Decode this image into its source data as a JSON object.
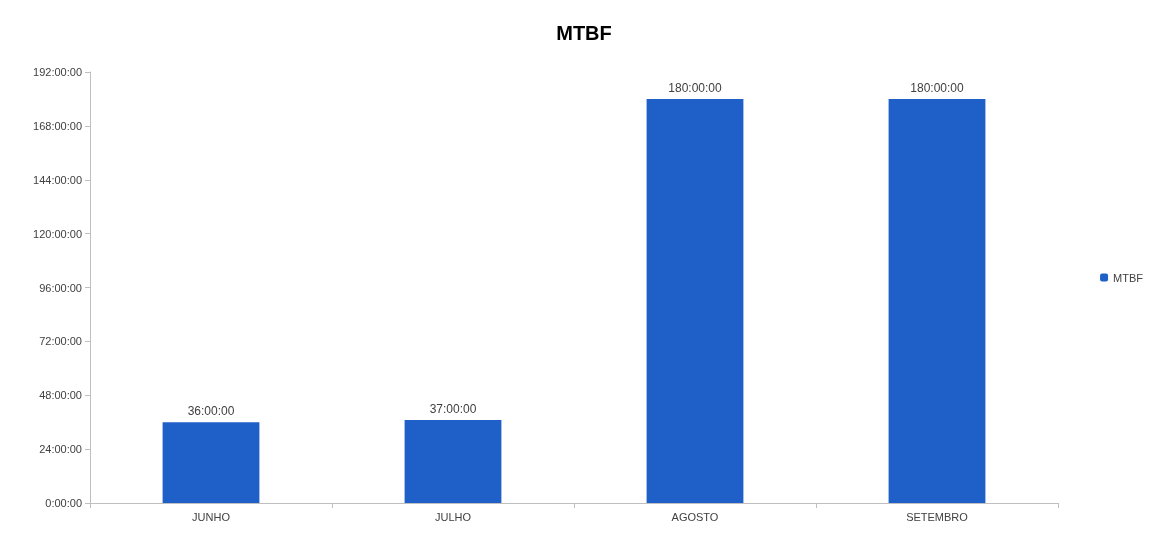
{
  "chart_data": {
    "type": "bar",
    "title": "MTBF",
    "categories": [
      "JUNHO",
      "JULHO",
      "AGOSTO",
      "SETEMBRO"
    ],
    "series": [
      {
        "name": "MTBF",
        "color": "#1f5fc8",
        "values": [
          36,
          37,
          180,
          180
        ],
        "value_labels": [
          "36:00:00",
          "37:00:00",
          "180:00:00",
          "180:00:00"
        ]
      }
    ],
    "ylim": [
      0,
      192
    ],
    "yticks": [
      {
        "value": 0,
        "label": "0:00:00"
      },
      {
        "value": 24,
        "label": "24:00:00"
      },
      {
        "value": 48,
        "label": "48:00:00"
      },
      {
        "value": 72,
        "label": "72:00:00"
      },
      {
        "value": 96,
        "label": "96:00:00"
      },
      {
        "value": 120,
        "label": "120:00:00"
      },
      {
        "value": 144,
        "label": "144:00:00"
      },
      {
        "value": 168,
        "label": "168:00:00"
      },
      {
        "value": 192,
        "label": "192:00:00"
      }
    ],
    "grid": false,
    "legend": "right"
  }
}
